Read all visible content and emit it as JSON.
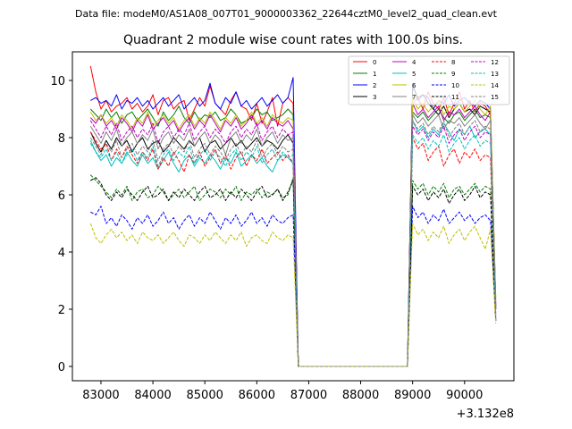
{
  "header": {
    "data_file": "Data file: modeM0/AS1A08_007T01_9000003362_22644cztM0_level2_quad_clean.evt"
  },
  "chart_data": {
    "type": "line",
    "title": "Quadrant 2 module wise count rates with 100.0s bins.",
    "offset_label": "+3.132e8",
    "xlabel": "",
    "ylabel": "",
    "xlim": [
      82450,
      90950
    ],
    "ylim": [
      -0.5,
      11.0
    ],
    "grid": false,
    "legend_position": "top-right",
    "x_ticks": [
      83000,
      84000,
      85000,
      86000,
      87000,
      88000,
      89000,
      90000
    ],
    "x_tick_labels": [
      "83000",
      "84000",
      "85000",
      "86000",
      "87000",
      "88000",
      "89000",
      "90000"
    ],
    "y_ticks": [
      0,
      2,
      4,
      6,
      8,
      10
    ],
    "y_tick_labels": [
      "0",
      "2",
      "4",
      "6",
      "8",
      "10"
    ],
    "active_windows": [
      {
        "start": 82800,
        "end": 86700,
        "points": 40
      },
      {
        "start": 89000,
        "end": 90600,
        "points": 17
      }
    ],
    "gap_x": [
      86800,
      86900,
      87000,
      87500,
      88000,
      88500,
      88900
    ],
    "series": [
      {
        "name": "0",
        "color": "#ff0000",
        "dash": "solid",
        "seg1": [
          10.5,
          9.6,
          9.0,
          9.3,
          8.9,
          9.1,
          9.2,
          9.4,
          9.0,
          9.2,
          8.9,
          9.1,
          9.5,
          8.8,
          9.3,
          9.4,
          9.0,
          9.2,
          9.3,
          8.6,
          9.0,
          9.4,
          9.1,
          9.8,
          9.2,
          9.0,
          8.8,
          9.3,
          9.6,
          9.1,
          9.0,
          8.6,
          9.2,
          8.5,
          8.9,
          9.4,
          8.4,
          9.2,
          9.4,
          9.2
        ],
        "seg2": [
          9.2,
          9.4,
          9.0,
          9.6,
          9.2,
          9.0,
          9.4,
          8.8,
          9.2,
          9.6,
          9.0,
          9.3,
          8.9,
          9.2,
          9.1,
          8.8,
          2.0
        ]
      },
      {
        "name": "1",
        "color": "#008000",
        "dash": "solid",
        "seg1": [
          9.0,
          8.8,
          8.6,
          9.0,
          8.7,
          8.9,
          8.5,
          8.8,
          8.9,
          8.6,
          8.8,
          9.0,
          8.7,
          8.4,
          8.9,
          8.6,
          8.8,
          9.1,
          8.7,
          8.5,
          8.9,
          8.6,
          8.8,
          8.7,
          8.9,
          8.6,
          8.7,
          9.0,
          8.8,
          8.5,
          8.6,
          8.7,
          9.0,
          8.8,
          8.9,
          8.6,
          8.7,
          8.8,
          9.0,
          8.8
        ],
        "seg2": [
          8.9,
          8.7,
          8.9,
          8.6,
          8.8,
          9.0,
          8.7,
          8.5,
          8.8,
          8.9,
          8.6,
          8.8,
          9.0,
          8.7,
          8.8,
          8.7,
          2.4
        ]
      },
      {
        "name": "2",
        "color": "#0000ff",
        "dash": "solid",
        "seg1": [
          9.3,
          9.4,
          9.2,
          9.3,
          9.1,
          9.5,
          9.0,
          9.3,
          9.2,
          9.4,
          9.1,
          9.3,
          9.0,
          9.2,
          9.4,
          9.1,
          9.3,
          9.5,
          9.0,
          9.2,
          9.4,
          9.1,
          9.3,
          9.9,
          9.2,
          9.0,
          9.4,
          9.2,
          9.6,
          9.1,
          9.3,
          9.0,
          9.2,
          9.4,
          9.1,
          9.3,
          9.5,
          9.2,
          9.4,
          10.1
        ],
        "seg2": [
          9.9,
          9.3,
          9.5,
          9.4,
          9.0,
          9.3,
          9.2,
          9.5,
          9.1,
          9.3,
          9.4,
          9.2,
          9.1,
          9.3,
          9.2,
          9.0,
          2.0
        ]
      },
      {
        "name": "3",
        "color": "#000000",
        "dash": "solid",
        "seg1": [
          8.2,
          7.8,
          7.5,
          7.9,
          7.6,
          8.0,
          7.7,
          7.9,
          7.5,
          7.8,
          8.0,
          7.6,
          7.8,
          7.9,
          7.5,
          7.7,
          8.0,
          7.8,
          7.6,
          7.9,
          7.7,
          8.0,
          7.5,
          7.8,
          7.9,
          7.6,
          7.8,
          8.0,
          7.7,
          7.9,
          7.6,
          7.8,
          8.0,
          7.7,
          7.9,
          7.8,
          7.6,
          7.9,
          8.1,
          7.8
        ],
        "seg2": [
          9.8,
          9.4,
          9.5,
          9.2,
          9.0,
          8.8,
          9.1,
          8.7,
          9.0,
          9.2,
          8.9,
          9.0,
          8.8,
          9.1,
          9.0,
          8.9,
          2.1
        ]
      },
      {
        "name": "4",
        "color": "#bf00bf",
        "dash": "solid",
        "seg1": [
          8.7,
          8.5,
          8.8,
          8.4,
          8.6,
          8.3,
          8.7,
          8.5,
          8.2,
          8.6,
          8.4,
          8.8,
          8.3,
          8.5,
          8.7,
          8.4,
          8.6,
          8.2,
          8.5,
          8.7,
          8.3,
          8.6,
          8.4,
          8.8,
          8.5,
          8.2,
          8.6,
          8.4,
          8.7,
          8.3,
          8.5,
          8.8,
          8.4,
          8.6,
          8.3,
          8.7,
          8.5,
          8.4,
          8.6,
          8.3
        ],
        "seg2": [
          9.2,
          8.8,
          9.0,
          8.7,
          8.9,
          9.1,
          8.6,
          8.9,
          8.8,
          9.0,
          8.7,
          8.9,
          9.1,
          8.8,
          8.6,
          8.9,
          2.2
        ]
      },
      {
        "name": "5",
        "color": "#00bfbf",
        "dash": "solid",
        "seg1": [
          7.9,
          7.5,
          7.2,
          7.4,
          7.0,
          7.3,
          7.1,
          7.5,
          7.2,
          7.0,
          7.4,
          7.1,
          7.3,
          6.9,
          7.2,
          7.5,
          7.1,
          6.8,
          7.2,
          7.4,
          7.0,
          7.3,
          7.1,
          7.4,
          7.2,
          6.9,
          7.3,
          7.1,
          7.5,
          7.0,
          7.2,
          7.4,
          7.1,
          7.3,
          7.0,
          6.8,
          7.2,
          7.4,
          7.3,
          7.1
        ],
        "seg2": [
          8.6,
          8.2,
          8.4,
          8.0,
          8.3,
          8.1,
          8.5,
          8.2,
          7.9,
          8.3,
          8.1,
          8.4,
          8.0,
          8.2,
          8.3,
          8.1,
          1.8
        ]
      },
      {
        "name": "6",
        "color": "#bfbf00",
        "dash": "solid",
        "seg1": [
          8.9,
          8.6,
          8.8,
          8.5,
          8.7,
          8.4,
          8.8,
          8.6,
          8.3,
          8.7,
          8.5,
          8.9,
          8.4,
          8.6,
          8.8,
          8.5,
          8.7,
          8.3,
          8.6,
          8.8,
          8.4,
          8.7,
          8.5,
          8.9,
          8.6,
          8.3,
          8.7,
          8.5,
          8.8,
          8.4,
          8.6,
          8.9,
          8.5,
          8.7,
          8.4,
          8.8,
          8.6,
          8.5,
          8.7,
          8.6
        ],
        "seg2": [
          9.4,
          9.0,
          9.2,
          8.9,
          9.1,
          9.3,
          8.8,
          9.1,
          9.0,
          9.2,
          8.9,
          9.1,
          9.3,
          9.0,
          8.8,
          9.1,
          2.3
        ]
      },
      {
        "name": "7",
        "color": "#808080",
        "dash": "solid",
        "seg1": [
          8.4,
          8.1,
          7.8,
          8.2,
          7.9,
          8.3,
          7.7,
          8.0,
          8.2,
          7.8,
          8.1,
          7.9,
          8.3,
          7.6,
          8.0,
          8.2,
          7.8,
          8.1,
          7.9,
          8.3,
          7.7,
          8.0,
          8.2,
          7.8,
          8.1,
          7.9,
          7.4,
          8.0,
          8.2,
          7.8,
          8.1,
          7.9,
          8.3,
          7.7,
          8.0,
          8.2,
          7.8,
          8.1,
          7.9,
          8.0
        ],
        "seg2": [
          8.8,
          8.5,
          8.7,
          8.4,
          8.6,
          8.8,
          8.3,
          8.6,
          8.5,
          8.7,
          8.4,
          8.6,
          8.8,
          8.5,
          8.3,
          8.6,
          2.1
        ]
      },
      {
        "name": "8",
        "color": "#ff0000",
        "dash": "dashed",
        "seg1": [
          8.2,
          7.9,
          7.6,
          7.8,
          7.2,
          7.6,
          7.3,
          7.7,
          7.4,
          7.1,
          7.5,
          7.2,
          7.6,
          6.9,
          7.3,
          7.0,
          7.5,
          7.2,
          6.8,
          7.4,
          7.1,
          7.5,
          7.0,
          7.3,
          7.6,
          7.1,
          7.4,
          6.9,
          7.3,
          7.5,
          7.0,
          7.4,
          7.2,
          7.6,
          7.1,
          7.3,
          7.5,
          7.2,
          7.4,
          7.1
        ],
        "seg2": [
          8.0,
          7.6,
          7.8,
          7.2,
          7.5,
          7.7,
          7.0,
          7.4,
          7.6,
          7.1,
          7.5,
          7.3,
          7.6,
          7.2,
          7.4,
          7.3,
          1.6
        ]
      },
      {
        "name": "9",
        "color": "#008000",
        "dash": "dashed",
        "seg1": [
          6.7,
          6.5,
          6.3,
          6.1,
          5.9,
          6.2,
          6.0,
          6.3,
          5.8,
          6.1,
          6.2,
          5.9,
          6.0,
          6.3,
          6.1,
          5.8,
          6.0,
          6.2,
          5.9,
          6.1,
          6.3,
          5.8,
          6.0,
          6.2,
          6.1,
          5.9,
          6.2,
          6.0,
          6.3,
          5.8,
          6.1,
          6.0,
          6.2,
          5.9,
          6.1,
          6.0,
          6.2,
          5.9,
          6.0,
          6.6
        ],
        "seg2": [
          6.5,
          6.2,
          6.4,
          6.0,
          6.3,
          6.1,
          6.4,
          5.9,
          6.2,
          6.3,
          6.0,
          6.2,
          6.4,
          6.1,
          6.3,
          6.2,
          1.6
        ]
      },
      {
        "name": "10",
        "color": "#0000ff",
        "dash": "dashed",
        "seg1": [
          5.4,
          5.3,
          5.6,
          5.0,
          5.2,
          4.9,
          5.3,
          5.1,
          4.8,
          5.2,
          5.0,
          5.3,
          4.9,
          5.1,
          5.4,
          5.0,
          5.2,
          4.8,
          5.1,
          5.3,
          4.9,
          5.2,
          5.0,
          5.4,
          5.1,
          4.8,
          5.2,
          5.0,
          5.3,
          4.9,
          5.1,
          5.4,
          5.0,
          5.2,
          4.9,
          5.3,
          5.1,
          5.0,
          5.2,
          5.3
        ],
        "seg2": [
          5.6,
          5.2,
          5.4,
          5.0,
          5.3,
          5.1,
          5.5,
          5.0,
          5.2,
          5.4,
          5.1,
          5.3,
          5.0,
          5.2,
          5.3,
          5.1,
          1.6
        ]
      },
      {
        "name": "11",
        "color": "#000000",
        "dash": "dashed",
        "seg1": [
          6.5,
          6.6,
          6.4,
          6.0,
          5.8,
          6.1,
          5.9,
          6.2,
          6.0,
          5.8,
          6.1,
          6.3,
          5.9,
          6.0,
          6.2,
          5.8,
          6.1,
          5.9,
          6.2,
          6.0,
          5.8,
          6.1,
          6.3,
          5.9,
          6.0,
          6.2,
          5.8,
          6.1,
          5.9,
          6.2,
          6.0,
          5.8,
          6.1,
          6.3,
          5.9,
          6.0,
          6.2,
          5.8,
          6.1,
          6.5
        ],
        "seg2": [
          6.3,
          6.0,
          6.2,
          5.8,
          6.1,
          5.9,
          6.2,
          5.7,
          6.0,
          6.2,
          5.8,
          6.0,
          6.3,
          5.9,
          6.1,
          6.0,
          1.6
        ]
      },
      {
        "name": "12",
        "color": "#bf00bf",
        "dash": "dashed",
        "seg1": [
          8.6,
          8.3,
          8.0,
          8.4,
          8.1,
          8.5,
          7.9,
          8.2,
          8.4,
          8.0,
          8.3,
          8.1,
          8.5,
          7.8,
          8.2,
          8.4,
          8.0,
          8.3,
          8.1,
          8.5,
          7.9,
          8.2,
          8.4,
          8.0,
          8.3,
          8.1,
          7.8,
          8.2,
          8.4,
          8.0,
          8.3,
          8.1,
          8.5,
          7.9,
          8.2,
          8.4,
          8.0,
          8.3,
          8.1,
          8.2
        ],
        "seg2": [
          8.4,
          8.1,
          8.3,
          7.9,
          8.2,
          8.0,
          8.4,
          7.8,
          8.1,
          8.3,
          7.9,
          8.2,
          8.4,
          8.0,
          8.2,
          8.1,
          1.7
        ]
      },
      {
        "name": "13",
        "color": "#00bfbf",
        "dash": "dashed",
        "seg1": [
          7.8,
          7.5,
          7.3,
          7.6,
          7.2,
          7.5,
          7.1,
          7.4,
          7.6,
          7.2,
          7.5,
          7.3,
          7.7,
          7.0,
          7.4,
          7.6,
          7.2,
          7.5,
          7.3,
          7.7,
          7.1,
          7.4,
          7.6,
          7.2,
          7.5,
          7.3,
          7.0,
          7.4,
          7.6,
          7.2,
          7.5,
          7.3,
          7.7,
          7.1,
          7.4,
          7.6,
          7.2,
          7.5,
          7.3,
          7.4
        ],
        "seg2": [
          8.1,
          7.8,
          8.0,
          7.6,
          7.9,
          7.7,
          8.1,
          7.5,
          7.8,
          8.0,
          7.6,
          7.9,
          8.1,
          7.7,
          7.9,
          7.8,
          1.6
        ]
      },
      {
        "name": "14",
        "color": "#bfbf00",
        "dash": "dashed",
        "seg1": [
          5.0,
          4.5,
          4.3,
          4.6,
          4.8,
          4.5,
          4.7,
          4.4,
          4.6,
          4.3,
          4.7,
          4.5,
          4.4,
          4.6,
          4.3,
          4.5,
          4.7,
          4.4,
          4.2,
          4.6,
          4.5,
          4.3,
          4.6,
          4.4,
          4.7,
          4.5,
          4.3,
          4.6,
          4.4,
          4.7,
          4.2,
          4.5,
          4.6,
          4.4,
          4.3,
          4.7,
          4.5,
          4.4,
          4.6,
          4.5
        ],
        "seg2": [
          5.0,
          4.6,
          4.8,
          4.4,
          4.7,
          4.5,
          4.9,
          4.3,
          4.6,
          4.8,
          4.4,
          4.7,
          4.9,
          4.5,
          4.1,
          4.8,
          1.5
        ]
      },
      {
        "name": "15",
        "color": "#808080",
        "dash": "dashed",
        "seg1": [
          8.0,
          7.7,
          7.4,
          7.8,
          7.5,
          7.9,
          7.3,
          7.6,
          7.8,
          7.4,
          7.7,
          7.5,
          7.9,
          7.2,
          7.6,
          7.8,
          7.4,
          7.7,
          7.5,
          7.9,
          7.3,
          7.6,
          7.8,
          7.4,
          7.7,
          7.5,
          7.2,
          7.6,
          7.8,
          7.4,
          7.7,
          7.5,
          7.9,
          7.3,
          7.6,
          7.8,
          7.4,
          7.7,
          7.5,
          7.6
        ],
        "seg2": [
          8.6,
          8.3,
          8.5,
          8.1,
          8.4,
          8.2,
          8.6,
          8.0,
          8.3,
          8.5,
          8.1,
          8.4,
          8.6,
          8.2,
          8.4,
          8.3,
          1.8
        ]
      }
    ]
  }
}
